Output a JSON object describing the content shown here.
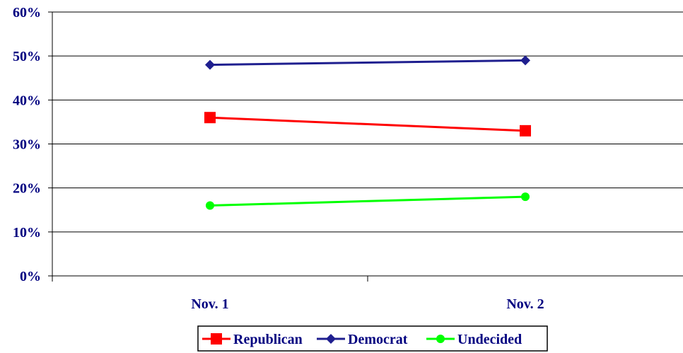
{
  "chart_data": {
    "type": "line",
    "title": "",
    "xlabel": "",
    "ylabel": "",
    "categories": [
      "Nov. 1",
      "Nov. 2"
    ],
    "ylim": [
      0,
      60
    ],
    "yticks": [
      0,
      10,
      20,
      30,
      40,
      50,
      60
    ],
    "ytick_suffix": "%",
    "grid": "horizontal",
    "legend_position": "bottom",
    "series": [
      {
        "name": "Republican",
        "values": [
          36,
          33
        ],
        "color": "#ff0000",
        "marker": "square"
      },
      {
        "name": "Democrat",
        "values": [
          48,
          49
        ],
        "color": "#1f1f8f",
        "marker": "diamond"
      },
      {
        "name": "Undecided",
        "values": [
          16,
          18
        ],
        "color": "#00ff00",
        "marker": "circle"
      }
    ]
  }
}
